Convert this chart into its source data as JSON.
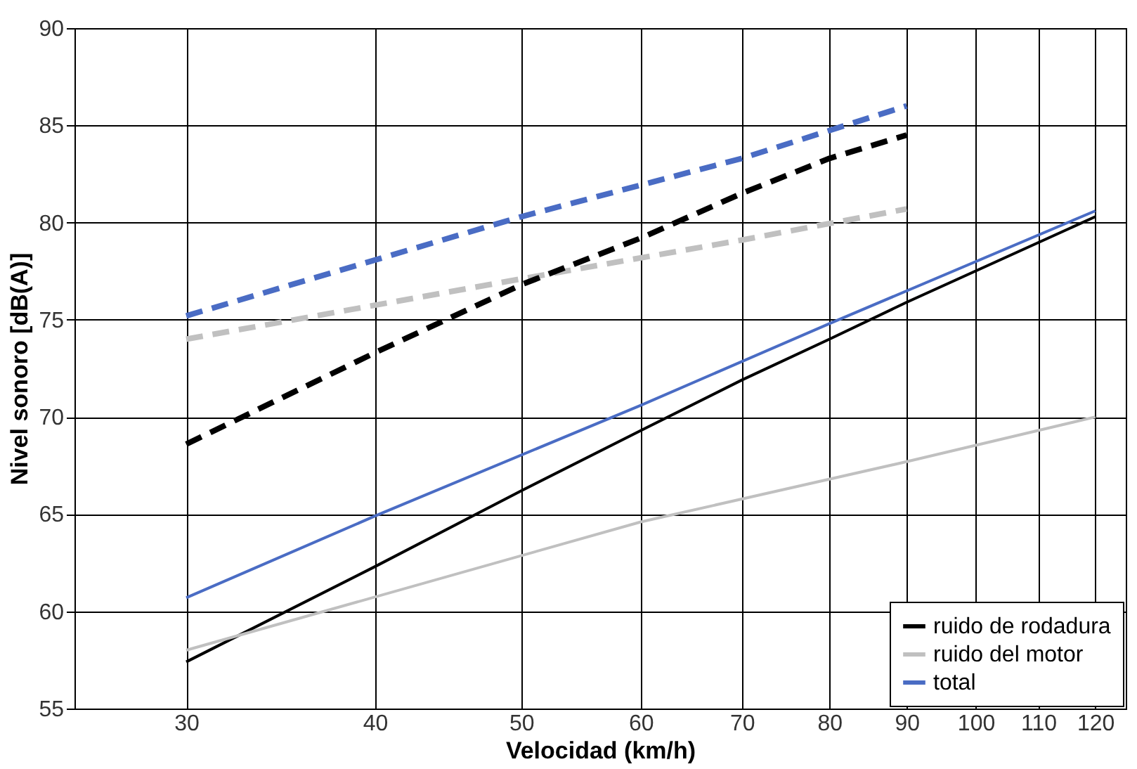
{
  "chart_data": {
    "type": "line",
    "xlabel": "Velocidad   (km/h)",
    "ylabel": "Nivel sonoro [dB(A)]",
    "log": "x",
    "xlim": [
      25.3,
      125.7
    ],
    "xticks": [
      30,
      40,
      50,
      60,
      70,
      80,
      90,
      100,
      110,
      120
    ],
    "ylim": [
      55,
      90
    ],
    "yticks": [
      55,
      60,
      65,
      70,
      75,
      80,
      85,
      90
    ],
    "grid": true,
    "legend": "bottom right",
    "series": [
      {
        "color": "#4a6cc4",
        "line_style": "dashed",
        "x": [
          30,
          50,
          70,
          90
        ],
        "values": [
          75.2,
          80.3,
          83.3,
          86.0
        ]
      },
      {
        "color": "#c0c0c0",
        "line_style": "dashed",
        "x": [
          30,
          50,
          70,
          90
        ],
        "values": [
          74.0,
          77.1,
          79.1,
          80.7
        ]
      },
      {
        "color": "#000000",
        "line_style": "dashed",
        "x": [
          30,
          40,
          50,
          60,
          70,
          80,
          90
        ],
        "values": [
          68.6,
          73.3,
          76.8,
          79.2,
          81.5,
          83.3,
          84.5
        ]
      },
      {
        "name": "ruido de rodadura",
        "color": "#000000",
        "line_style": "solid",
        "x": [
          30,
          40,
          50,
          60,
          70,
          80,
          90,
          120
        ],
        "values": [
          57.4,
          62.3,
          66.2,
          69.3,
          71.9,
          74.0,
          75.9,
          80.3
        ]
      },
      {
        "name": "ruido del motor",
        "color": "#c0c0c0",
        "line_style": "solid",
        "x": [
          30,
          60,
          90,
          120
        ],
        "values": [
          58.0,
          64.6,
          67.7,
          70.0
        ]
      },
      {
        "name": "total",
        "color": "#4a6cc4",
        "line_style": "solid",
        "x": [
          30,
          40,
          60,
          80,
          120
        ],
        "values": [
          60.7,
          64.9,
          70.6,
          74.8,
          80.6
        ]
      }
    ]
  }
}
